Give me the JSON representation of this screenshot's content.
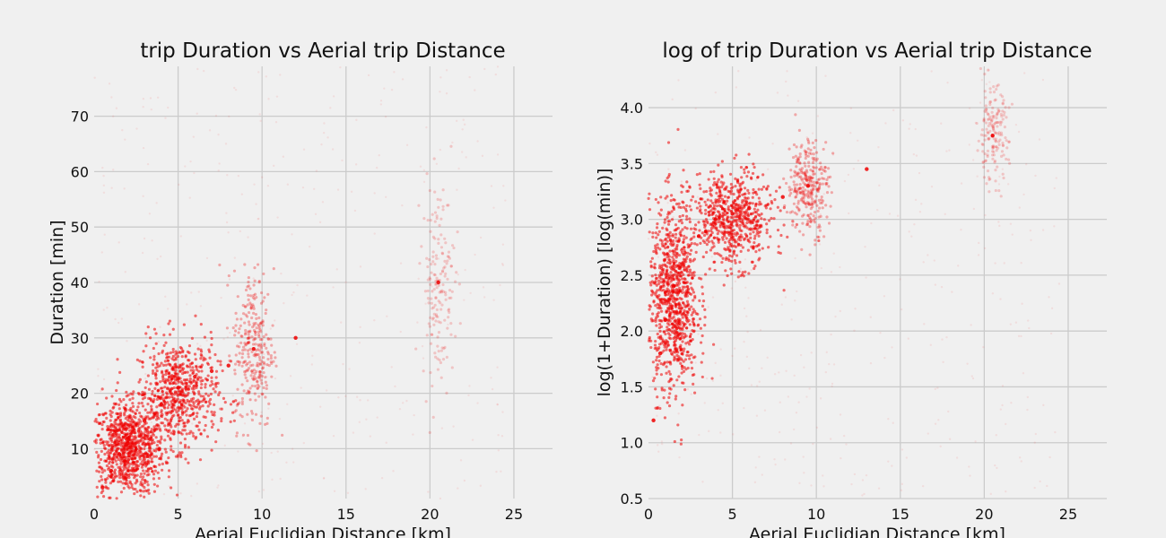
{
  "colors": {
    "background": "#f0f0f0",
    "points": "#ee0000",
    "grid": "#cbcbcb"
  },
  "chart_data": [
    {
      "type": "scatter",
      "title": "trip Duration vs Aerial trip Distance",
      "xlabel": "Aerial Euclidian Distance [km]",
      "ylabel": "Duration [min]",
      "xlim": [
        0,
        27.3
      ],
      "ylim": [
        1,
        79
      ],
      "xticks": [
        0,
        5,
        10,
        15,
        20,
        25
      ],
      "yticks": [
        10,
        20,
        30,
        40,
        50,
        60,
        70
      ],
      "grid": true,
      "point_color": "#ee0000",
      "series": [
        {
          "clusters": [
            {
              "x": 2.0,
              "y": 10,
              "x_spread": 1.8,
              "y_spread": 7,
              "density": "very high"
            },
            {
              "x": 5.0,
              "y": 20,
              "x_spread": 2.0,
              "y_spread": 8,
              "density": "high"
            },
            {
              "x": 9.5,
              "y": 28,
              "x_spread": 1.0,
              "y_spread": 12,
              "density": "medium"
            },
            {
              "x": 20.5,
              "y": 40,
              "x_spread": 0.8,
              "y_spread": 15,
              "density": "low"
            }
          ],
          "x": [
            0.5,
            1.0,
            1.5,
            2.0,
            3.0,
            4.0,
            5.0,
            6.0,
            7.0,
            8.0,
            9.5,
            12.0,
            20.5
          ],
          "y": [
            3,
            6,
            9,
            11,
            15,
            18,
            21,
            23,
            24,
            25,
            28,
            30,
            40
          ]
        }
      ]
    },
    {
      "type": "scatter",
      "title": "log of trip Duration vs Aerial trip Distance",
      "xlabel": "Aerial Euclidian Distance [km]",
      "ylabel": "log(1+Duration) [log(min)]",
      "xlim": [
        0,
        27.3
      ],
      "ylim": [
        0.5,
        4.37
      ],
      "xticks": [
        0,
        5,
        10,
        15,
        20,
        25
      ],
      "yticks": [
        0.5,
        1.0,
        1.5,
        2.0,
        2.5,
        3.0,
        3.5,
        4.0
      ],
      "grid": true,
      "point_color": "#ee0000",
      "series": [
        {
          "clusters": [
            {
              "x": 1.5,
              "y": 2.3,
              "x_spread": 1.2,
              "y_spread": 0.7,
              "density": "very high"
            },
            {
              "x": 5.0,
              "y": 3.0,
              "x_spread": 2.0,
              "y_spread": 0.35,
              "density": "high"
            },
            {
              "x": 9.5,
              "y": 3.3,
              "x_spread": 1.0,
              "y_spread": 0.35,
              "density": "medium"
            },
            {
              "x": 20.5,
              "y": 3.75,
              "x_spread": 0.8,
              "y_spread": 0.35,
              "density": "low"
            }
          ],
          "x": [
            0.3,
            0.7,
            1.0,
            1.5,
            2.0,
            3.0,
            4.0,
            5.0,
            6.0,
            8.0,
            9.5,
            13.0,
            20.5
          ],
          "y": [
            1.2,
            1.8,
            2.1,
            2.4,
            2.6,
            2.85,
            3.0,
            3.05,
            3.1,
            3.2,
            3.3,
            3.45,
            3.75
          ]
        }
      ]
    }
  ]
}
